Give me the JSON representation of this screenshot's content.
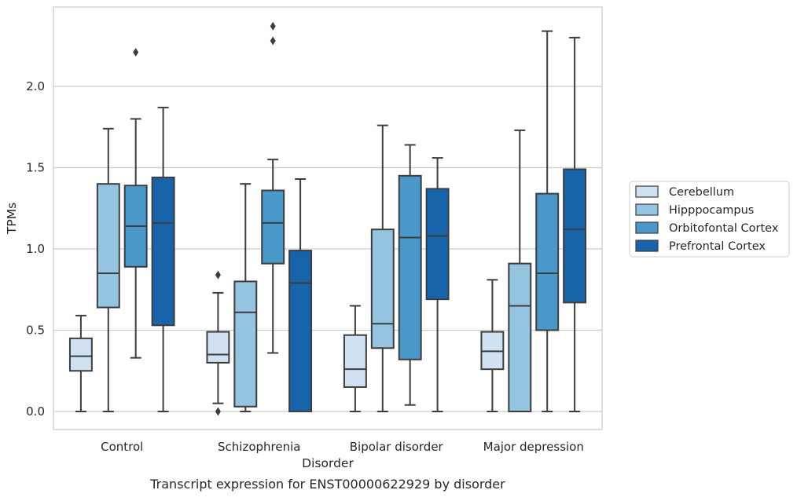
{
  "chart_data": {
    "type": "box",
    "title": "Transcript expression for ENST00000622929 by disorder",
    "xlabel": "Disorder",
    "ylabel": "TPMs",
    "ylim": [
      -0.11,
      2.44
    ],
    "yticks": [
      "0.0",
      "0.5",
      "1.0",
      "1.5",
      "2.0"
    ],
    "grid": "horizontal",
    "legend_position": "right",
    "categories": [
      "Control",
      "Schizophrenia",
      "Bipolar disorder",
      "Major depression"
    ],
    "series": [
      {
        "name": "Cerebellum",
        "color": "#d0e1f2",
        "boxes": [
          {
            "whisker_low": 0.0,
            "q1": 0.25,
            "median": 0.34,
            "q3": 0.45,
            "whisker_high": 0.59,
            "outliers": []
          },
          {
            "whisker_low": 0.05,
            "q1": 0.3,
            "median": 0.35,
            "q3": 0.49,
            "whisker_high": 0.73,
            "outliers": [
              0.84,
              0.0
            ]
          },
          {
            "whisker_low": 0.0,
            "q1": 0.15,
            "median": 0.26,
            "q3": 0.47,
            "whisker_high": 0.65,
            "outliers": []
          },
          {
            "whisker_low": 0.0,
            "q1": 0.26,
            "median": 0.37,
            "q3": 0.49,
            "whisker_high": 0.81,
            "outliers": []
          }
        ]
      },
      {
        "name": "Hipppocampus",
        "color": "#94c4df",
        "boxes": [
          {
            "whisker_low": 0.0,
            "q1": 0.64,
            "median": 0.85,
            "q3": 1.4,
            "whisker_high": 1.74,
            "outliers": []
          },
          {
            "whisker_low": 0.0,
            "q1": 0.03,
            "median": 0.61,
            "q3": 0.8,
            "whisker_high": 1.4,
            "outliers": []
          },
          {
            "whisker_low": 0.0,
            "q1": 0.39,
            "median": 0.54,
            "q3": 1.12,
            "whisker_high": 1.76,
            "outliers": []
          },
          {
            "whisker_low": 0.0,
            "q1": 0.0,
            "median": 0.65,
            "q3": 0.91,
            "whisker_high": 1.73,
            "outliers": []
          }
        ]
      },
      {
        "name": "Orbitofontal Cortex",
        "color": "#4a98c9",
        "boxes": [
          {
            "whisker_low": 0.33,
            "q1": 0.89,
            "median": 1.14,
            "q3": 1.39,
            "whisker_high": 1.8,
            "outliers": [
              2.21
            ]
          },
          {
            "whisker_low": 0.36,
            "q1": 0.91,
            "median": 1.16,
            "q3": 1.36,
            "whisker_high": 1.55,
            "outliers": [
              2.37,
              2.28
            ]
          },
          {
            "whisker_low": 0.04,
            "q1": 0.32,
            "median": 1.07,
            "q3": 1.45,
            "whisker_high": 1.64,
            "outliers": []
          },
          {
            "whisker_low": 0.0,
            "q1": 0.5,
            "median": 0.85,
            "q3": 1.34,
            "whisker_high": 2.34,
            "outliers": []
          }
        ]
      },
      {
        "name": "Prefrontal Cortex",
        "color": "#1764ab",
        "boxes": [
          {
            "whisker_low": 0.0,
            "q1": 0.53,
            "median": 1.16,
            "q3": 1.44,
            "whisker_high": 1.87,
            "outliers": []
          },
          {
            "whisker_low": 0.0,
            "q1": 0.0,
            "median": 0.79,
            "q3": 0.99,
            "whisker_high": 1.43,
            "outliers": []
          },
          {
            "whisker_low": 0.0,
            "q1": 0.69,
            "median": 1.08,
            "q3": 1.37,
            "whisker_high": 1.56,
            "outliers": []
          },
          {
            "whisker_low": 0.0,
            "q1": 0.67,
            "median": 1.12,
            "q3": 1.49,
            "whisker_high": 2.3,
            "outliers": []
          }
        ]
      }
    ]
  }
}
